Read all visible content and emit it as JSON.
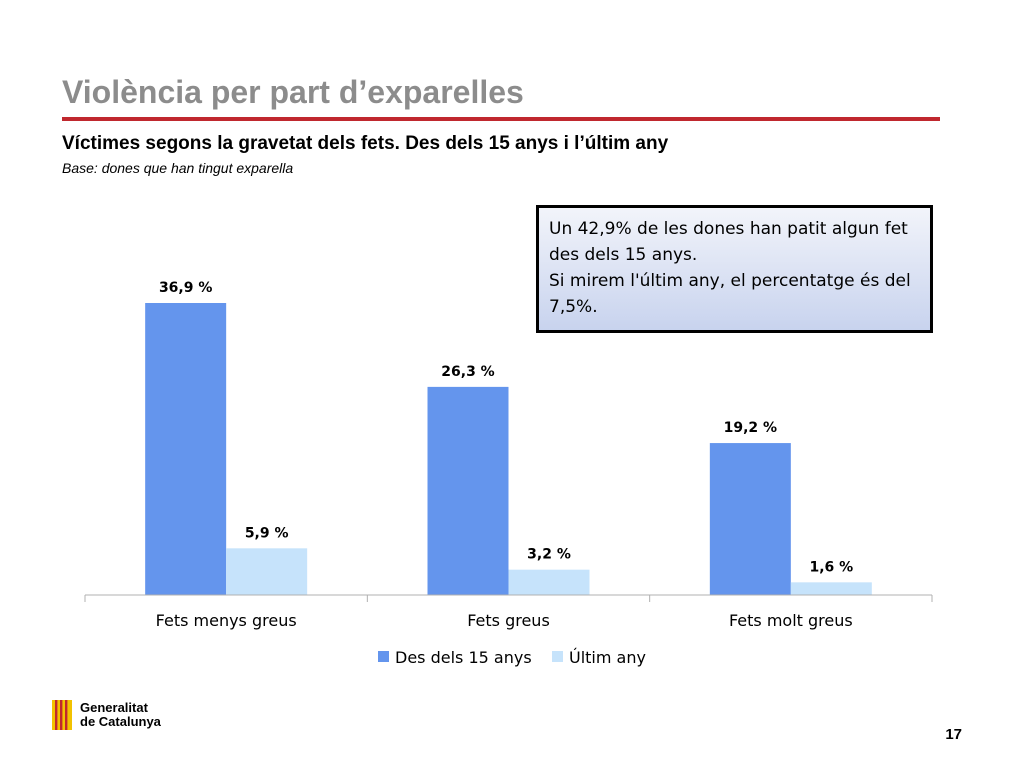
{
  "slide": {
    "title": "Violència per part d’exparelles",
    "subtitle": "Víctimes segons la gravetat dels fets. Des dels 15 anys i l’últim any",
    "base_note": "Base: dones que han tingut exparella",
    "callout_line1": "Un 42,9% de les dones han patit algun fet des dels 15 anys.",
    "callout_line2": "Si mirem l'últim any, el percentatge és del 7,5%.",
    "page_number": "17",
    "logo_line1": "Generalitat",
    "logo_line2": "de Catalunya"
  },
  "colors": {
    "title_gray": "#8c8c8c",
    "rule_red": "#c0282e",
    "series1": "#6495ed",
    "series2": "#c6e3fb",
    "logo_red": "#c0282e",
    "logo_gold": "#f2c200"
  },
  "chart_data": {
    "type": "bar",
    "categories": [
      "Fets menys greus",
      "Fets greus",
      "Fets molt greus"
    ],
    "series": [
      {
        "name": "Des dels 15 anys",
        "values": [
          36.9,
          26.3,
          19.2
        ],
        "labels": [
          "36,9 %",
          "26,3 %",
          "19,2 %"
        ]
      },
      {
        "name": "Últim any",
        "values": [
          5.9,
          3.2,
          1.6
        ],
        "labels": [
          "5,9 %",
          "3,2 %",
          "1,6 %"
        ]
      }
    ],
    "ylim": [
      0,
      40
    ],
    "grid": false,
    "legend_position": "bottom"
  }
}
